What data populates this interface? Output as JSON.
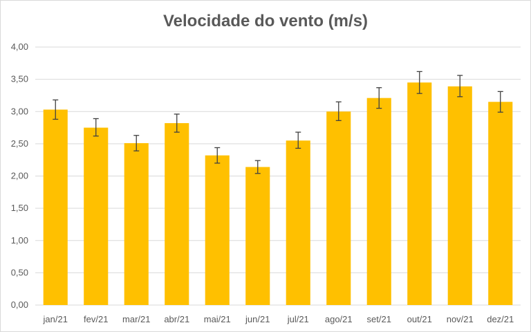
{
  "chart_data": {
    "type": "bar",
    "title": "Velocidade do vento (m/s)",
    "categories": [
      "jan/21",
      "fev/21",
      "mar/21",
      "abr/21",
      "mai/21",
      "jun/21",
      "jul/21",
      "ago/21",
      "set/21",
      "out/21",
      "nov/21",
      "dez/21"
    ],
    "values": [
      3.03,
      2.75,
      2.51,
      2.82,
      2.32,
      2.14,
      2.55,
      3.0,
      3.21,
      3.45,
      3.39,
      3.15
    ],
    "error_low": [
      2.88,
      2.62,
      2.39,
      2.68,
      2.2,
      2.04,
      2.43,
      2.86,
      3.05,
      3.28,
      3.23,
      2.99
    ],
    "error_high": [
      3.18,
      2.89,
      2.63,
      2.96,
      2.44,
      2.24,
      2.68,
      3.15,
      3.37,
      3.62,
      3.56,
      3.31
    ],
    "ylim": [
      0,
      4
    ],
    "yticks": [
      "0,00",
      "0,50",
      "1,00",
      "1,50",
      "2,00",
      "2,50",
      "3,00",
      "3,50",
      "4,00"
    ],
    "grid": true,
    "legend": "none",
    "bar_color": "#FFC000",
    "error_bar_color": "#404040",
    "grid_color": "#d9d9d9",
    "text_color": "#595959"
  }
}
